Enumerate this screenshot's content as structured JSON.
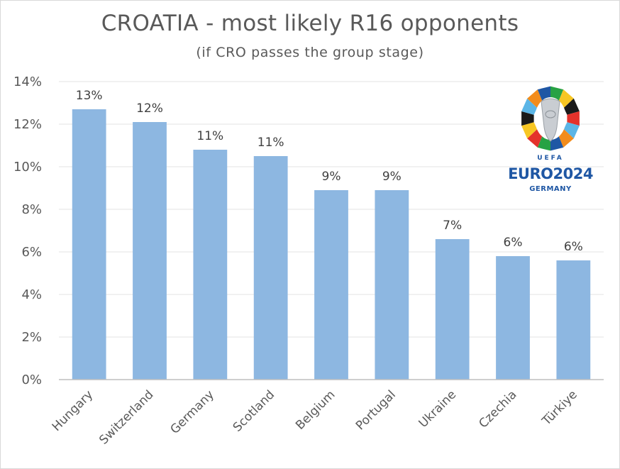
{
  "chart_data": {
    "type": "bar",
    "title": "CROATIA - most likely R16 opponents",
    "subtitle": "(if CRO passes the group stage)",
    "categories": [
      "Hungary",
      "Switzerland",
      "Germany",
      "Scotland",
      "Belgium",
      "Portugal",
      "Ukraine",
      "Czechia",
      "Türkiye"
    ],
    "values": [
      12.7,
      12.1,
      10.8,
      10.5,
      8.9,
      8.9,
      6.6,
      5.8,
      5.6
    ],
    "data_labels": [
      "13%",
      "12%",
      "11%",
      "11%",
      "9%",
      "9%",
      "7%",
      "6%",
      "6%"
    ],
    "ylim": [
      0,
      14
    ],
    "yticks": [
      0,
      2,
      4,
      6,
      8,
      10,
      12,
      14
    ],
    "ytick_labels": [
      "0%",
      "2%",
      "4%",
      "6%",
      "8%",
      "10%",
      "12%",
      "14%"
    ],
    "xlabel": "",
    "ylabel": "",
    "grid": true,
    "bar_color": "#8db7e1"
  },
  "logo": {
    "organization": "UEFA",
    "event": "EURO2024",
    "host": "GERMANY",
    "colors": {
      "blue": "#1f57a4",
      "red": "#e4322b",
      "yellow": "#f7c623",
      "green": "#27a244",
      "orange": "#f28c1c",
      "black": "#1a1a1a",
      "lightblue": "#5bb5e6",
      "silver": "#c9cdd2"
    }
  }
}
